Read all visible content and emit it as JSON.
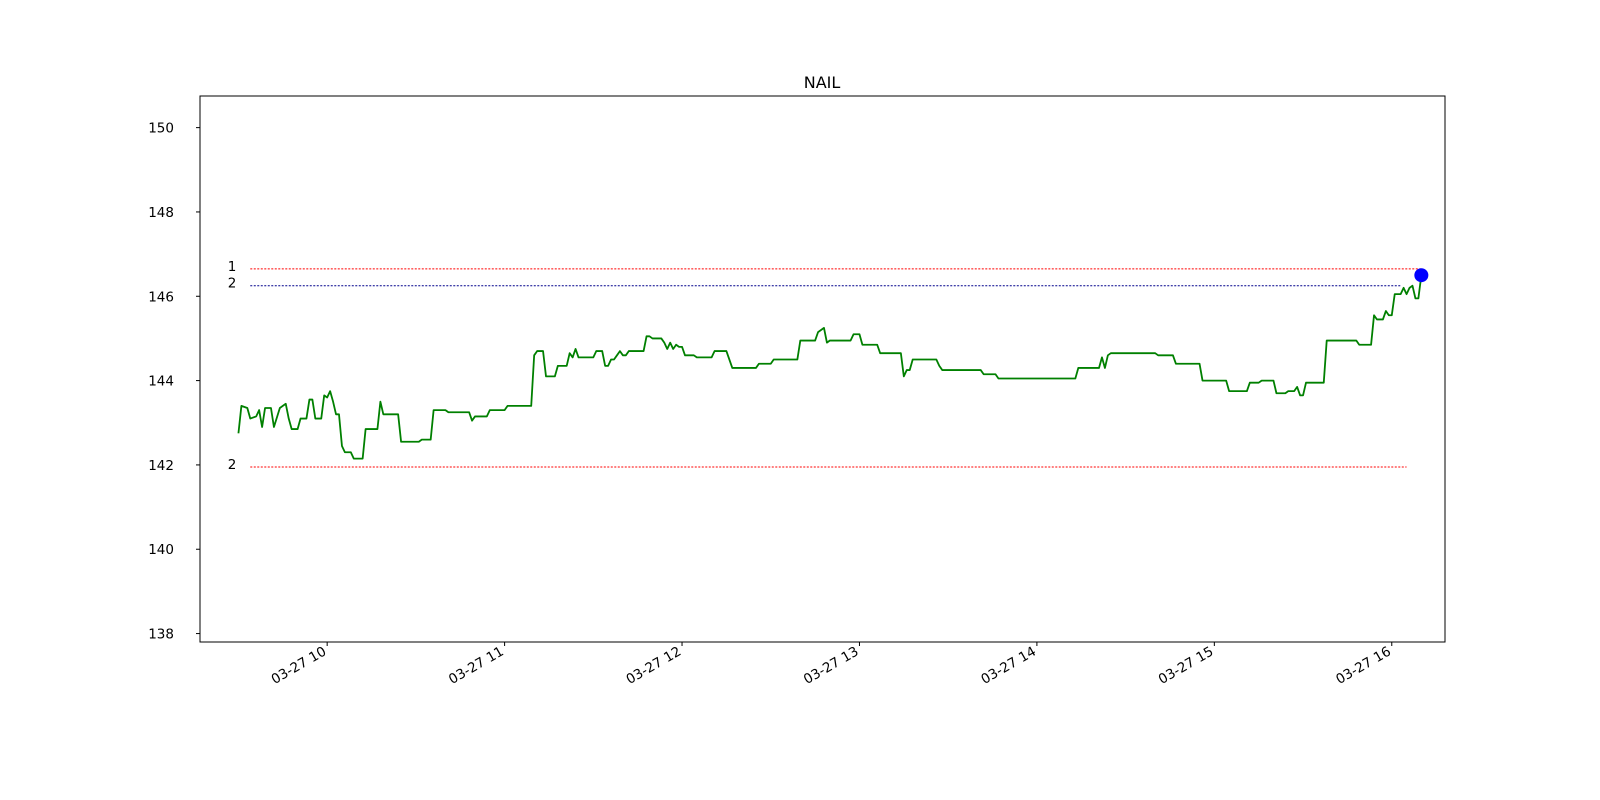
{
  "chart_data": {
    "type": "line",
    "title": "NAIL",
    "xlabel": "",
    "ylabel": "",
    "x_unit": "time (HH:MM) on 03-27",
    "xlim": [
      "09:17",
      "16:18"
    ],
    "ylim": [
      137.8,
      150.75
    ],
    "grid": false,
    "x_ticks": [
      {
        "value": "10:00",
        "label": "03-27 10"
      },
      {
        "value": "11:00",
        "label": "03-27 11"
      },
      {
        "value": "12:00",
        "label": "03-27 12"
      },
      {
        "value": "13:00",
        "label": "03-27 13"
      },
      {
        "value": "14:00",
        "label": "03-27 14"
      },
      {
        "value": "15:00",
        "label": "03-27 15"
      },
      {
        "value": "16:00",
        "label": "03-27 16"
      }
    ],
    "y_ticks": [
      138,
      140,
      142,
      144,
      146,
      148,
      150
    ],
    "series": [
      {
        "color": "#008000",
        "points": [
          [
            "09:30",
            142.75
          ],
          [
            "09:31",
            143.4
          ],
          [
            "09:33",
            143.35
          ],
          [
            "09:34",
            143.1
          ],
          [
            "09:36",
            143.15
          ],
          [
            "09:37",
            143.3
          ],
          [
            "09:38",
            142.9
          ],
          [
            "09:39",
            143.35
          ],
          [
            "09:41",
            143.35
          ],
          [
            "09:42",
            142.9
          ],
          [
            "09:44",
            143.35
          ],
          [
            "09:46",
            143.45
          ],
          [
            "09:47",
            143.1
          ],
          [
            "09:48",
            142.85
          ],
          [
            "09:50",
            142.85
          ],
          [
            "09:51",
            143.1
          ],
          [
            "09:53",
            143.1
          ],
          [
            "09:54",
            143.55
          ],
          [
            "09:55",
            143.55
          ],
          [
            "09:56",
            143.1
          ],
          [
            "09:58",
            143.1
          ],
          [
            "09:59",
            143.65
          ],
          [
            "10:00",
            143.6
          ],
          [
            "10:01",
            143.75
          ],
          [
            "10:02",
            143.5
          ],
          [
            "10:03",
            143.2
          ],
          [
            "10:04",
            143.2
          ],
          [
            "10:05",
            142.45
          ],
          [
            "10:06",
            142.3
          ],
          [
            "10:08",
            142.3
          ],
          [
            "10:09",
            142.15
          ],
          [
            "10:12",
            142.15
          ],
          [
            "10:13",
            142.85
          ],
          [
            "10:17",
            142.85
          ],
          [
            "10:18",
            143.5
          ],
          [
            "10:19",
            143.2
          ],
          [
            "10:24",
            143.2
          ],
          [
            "10:25",
            142.55
          ],
          [
            "10:31",
            142.55
          ],
          [
            "10:32",
            142.6
          ],
          [
            "10:35",
            142.6
          ],
          [
            "10:36",
            143.3
          ],
          [
            "10:40",
            143.3
          ],
          [
            "10:41",
            143.25
          ],
          [
            "10:48",
            143.25
          ],
          [
            "10:49",
            143.05
          ],
          [
            "10:50",
            143.15
          ],
          [
            "10:54",
            143.15
          ],
          [
            "10:55",
            143.3
          ],
          [
            "11:00",
            143.3
          ],
          [
            "11:01",
            143.4
          ],
          [
            "11:09",
            143.4
          ],
          [
            "11:10",
            144.6
          ],
          [
            "11:11",
            144.7
          ],
          [
            "11:13",
            144.7
          ],
          [
            "11:14",
            144.1
          ],
          [
            "11:17",
            144.1
          ],
          [
            "11:18",
            144.35
          ],
          [
            "11:21",
            144.35
          ],
          [
            "11:22",
            144.65
          ],
          [
            "11:23",
            144.55
          ],
          [
            "11:24",
            144.75
          ],
          [
            "11:25",
            144.55
          ],
          [
            "11:30",
            144.55
          ],
          [
            "11:31",
            144.7
          ],
          [
            "11:33",
            144.7
          ],
          [
            "11:34",
            144.35
          ],
          [
            "11:35",
            144.35
          ],
          [
            "11:36",
            144.5
          ],
          [
            "11:37",
            144.5
          ],
          [
            "11:38",
            144.6
          ],
          [
            "11:39",
            144.7
          ],
          [
            "11:40",
            144.6
          ],
          [
            "11:41",
            144.6
          ],
          [
            "11:42",
            144.7
          ],
          [
            "11:47",
            144.7
          ],
          [
            "11:48",
            145.05
          ],
          [
            "11:49",
            145.05
          ],
          [
            "11:50",
            145.0
          ],
          [
            "11:53",
            145.0
          ],
          [
            "11:54",
            144.9
          ],
          [
            "11:55",
            144.75
          ],
          [
            "11:56",
            144.9
          ],
          [
            "11:57",
            144.75
          ],
          [
            "11:58",
            144.85
          ],
          [
            "11:59",
            144.8
          ],
          [
            "12:00",
            144.8
          ],
          [
            "12:01",
            144.6
          ],
          [
            "12:04",
            144.6
          ],
          [
            "12:05",
            144.55
          ],
          [
            "12:10",
            144.55
          ],
          [
            "12:11",
            144.7
          ],
          [
            "12:15",
            144.7
          ],
          [
            "12:17",
            144.3
          ],
          [
            "12:25",
            144.3
          ],
          [
            "12:26",
            144.4
          ],
          [
            "12:30",
            144.4
          ],
          [
            "12:31",
            144.5
          ],
          [
            "12:39",
            144.5
          ],
          [
            "12:40",
            144.95
          ],
          [
            "12:45",
            144.95
          ],
          [
            "12:46",
            145.15
          ],
          [
            "12:48",
            145.25
          ],
          [
            "12:49",
            144.9
          ],
          [
            "12:50",
            144.95
          ],
          [
            "12:57",
            144.95
          ],
          [
            "12:58",
            145.1
          ],
          [
            "13:00",
            145.1
          ],
          [
            "13:01",
            144.85
          ],
          [
            "13:06",
            144.85
          ],
          [
            "13:07",
            144.65
          ],
          [
            "13:14",
            144.65
          ],
          [
            "13:15",
            144.1
          ],
          [
            "13:16",
            144.25
          ],
          [
            "13:17",
            144.25
          ],
          [
            "13:18",
            144.5
          ],
          [
            "13:26",
            144.5
          ],
          [
            "13:27",
            144.35
          ],
          [
            "13:28",
            144.25
          ],
          [
            "13:41",
            144.25
          ],
          [
            "13:42",
            144.15
          ],
          [
            "13:46",
            144.15
          ],
          [
            "13:47",
            144.05
          ],
          [
            "14:13",
            144.05
          ],
          [
            "14:14",
            144.3
          ],
          [
            "14:21",
            144.3
          ],
          [
            "14:22",
            144.55
          ],
          [
            "14:23",
            144.3
          ],
          [
            "14:24",
            144.6
          ],
          [
            "14:25",
            144.65
          ],
          [
            "14:40",
            144.65
          ],
          [
            "14:41",
            144.6
          ],
          [
            "14:46",
            144.6
          ],
          [
            "14:47",
            144.4
          ],
          [
            "14:55",
            144.4
          ],
          [
            "14:56",
            144.0
          ],
          [
            "15:04",
            144.0
          ],
          [
            "15:05",
            143.75
          ],
          [
            "15:11",
            143.75
          ],
          [
            "15:12",
            143.95
          ],
          [
            "15:15",
            143.95
          ],
          [
            "15:16",
            144.0
          ],
          [
            "15:20",
            144.0
          ],
          [
            "15:21",
            143.7
          ],
          [
            "15:24",
            143.7
          ],
          [
            "15:25",
            143.75
          ],
          [
            "15:27",
            143.75
          ],
          [
            "15:28",
            143.85
          ],
          [
            "15:29",
            143.65
          ],
          [
            "15:30",
            143.65
          ],
          [
            "15:31",
            143.95
          ],
          [
            "15:37",
            143.95
          ],
          [
            "15:38",
            144.95
          ],
          [
            "15:48",
            144.95
          ],
          [
            "15:49",
            144.85
          ],
          [
            "15:53",
            144.85
          ],
          [
            "15:54",
            145.55
          ],
          [
            "15:55",
            145.45
          ],
          [
            "15:57",
            145.45
          ],
          [
            "15:58",
            145.65
          ],
          [
            "15:59",
            145.55
          ],
          [
            "16:00",
            145.55
          ],
          [
            "16:01",
            146.05
          ],
          [
            "16:03",
            146.05
          ],
          [
            "16:04",
            146.2
          ],
          [
            "16:05",
            146.05
          ],
          [
            "16:06",
            146.2
          ],
          [
            "16:07",
            146.25
          ],
          [
            "16:08",
            145.95
          ],
          [
            "16:09",
            145.95
          ],
          [
            "16:10",
            146.5
          ]
        ]
      }
    ],
    "levels": [
      {
        "label": "1",
        "y": 146.65,
        "color": "#ff0000",
        "x_start": "09:34",
        "x_end": "16:10"
      },
      {
        "label": "2",
        "y": 146.25,
        "color": "#00008b",
        "x_start": "09:34",
        "x_end": "16:03"
      },
      {
        "label": "2",
        "y": 141.95,
        "color": "#ff0000",
        "x_start": "09:34",
        "x_end": "16:05"
      }
    ],
    "marker": {
      "x": "16:10",
      "y": 146.5,
      "color": "#0000ff"
    }
  }
}
